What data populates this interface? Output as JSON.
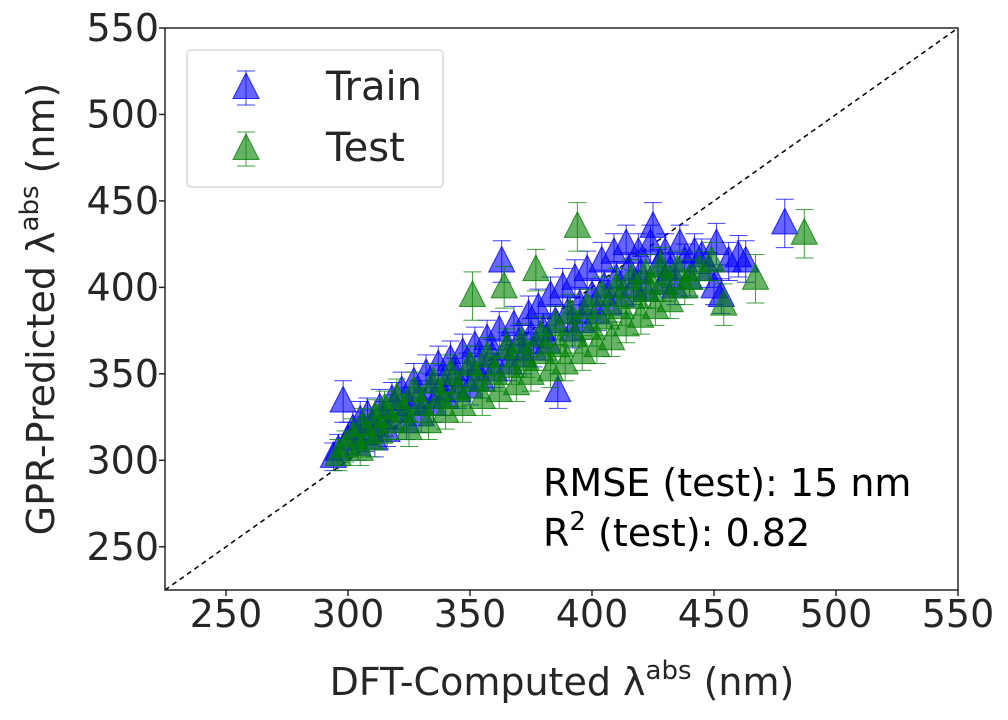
{
  "chart_data": {
    "type": "scatter",
    "title": "",
    "xlabel": {
      "prefix": "DFT-Computed λ",
      "sup": "abs",
      "suffix": " (nm)"
    },
    "ylabel": {
      "prefix": "GPR-Predicted λ",
      "sup": "abs",
      "suffix": " (nm)"
    },
    "xlim": [
      225,
      550
    ],
    "ylim": [
      225,
      550
    ],
    "xticks": [
      250,
      300,
      350,
      400,
      450,
      500,
      550
    ],
    "yticks": [
      250,
      300,
      350,
      400,
      450,
      500,
      550
    ],
    "grid": false,
    "legend_position": "top-left",
    "diagonal": {
      "from": [
        225,
        225
      ],
      "to": [
        550,
        550
      ],
      "style": "dashed"
    },
    "annotations": {
      "rmse": "RMSE (test): 15 nm",
      "r2_prefix": "R",
      "r2_sup": "2",
      "r2_suffix": " (test): 0.82"
    },
    "series": [
      {
        "name": "Train",
        "color": "#0000ff",
        "marker": "triangle-up",
        "points": [
          [
            294,
            302,
            8
          ],
          [
            296,
            306,
            9
          ],
          [
            298,
            334,
            12
          ],
          [
            300,
            312,
            10
          ],
          [
            302,
            318,
            10
          ],
          [
            304,
            309,
            9
          ],
          [
            305,
            323,
            11
          ],
          [
            307,
            315,
            10
          ],
          [
            308,
            326,
            10
          ],
          [
            310,
            320,
            9
          ],
          [
            311,
            312,
            10
          ],
          [
            313,
            330,
            11
          ],
          [
            315,
            324,
            10
          ],
          [
            316,
            317,
            9
          ],
          [
            318,
            335,
            10
          ],
          [
            320,
            328,
            10
          ],
          [
            322,
            340,
            11
          ],
          [
            324,
            322,
            10
          ],
          [
            325,
            332,
            10
          ],
          [
            327,
            345,
            11
          ],
          [
            329,
            336,
            10
          ],
          [
            330,
            326,
            10
          ],
          [
            332,
            350,
            11
          ],
          [
            334,
            340,
            10
          ],
          [
            335,
            332,
            10
          ],
          [
            337,
            355,
            11
          ],
          [
            339,
            345,
            10
          ],
          [
            340,
            336,
            10
          ],
          [
            342,
            358,
            11
          ],
          [
            344,
            349,
            10
          ],
          [
            345,
            340,
            10
          ],
          [
            347,
            362,
            11
          ],
          [
            349,
            352,
            10
          ],
          [
            350,
            342,
            10
          ],
          [
            352,
            366,
            11
          ],
          [
            354,
            356,
            10
          ],
          [
            355,
            346,
            10
          ],
          [
            357,
            370,
            11
          ],
          [
            359,
            360,
            10
          ],
          [
            360,
            352,
            10
          ],
          [
            362,
            375,
            11
          ],
          [
            363,
            415,
            12
          ],
          [
            365,
            364,
            10
          ],
          [
            366,
            356,
            10
          ],
          [
            368,
            378,
            11
          ],
          [
            370,
            368,
            10
          ],
          [
            372,
            360,
            10
          ],
          [
            374,
            384,
            11
          ],
          [
            375,
            372,
            10
          ],
          [
            376,
            364,
            10
          ],
          [
            378,
            388,
            11
          ],
          [
            380,
            375,
            10
          ],
          [
            382,
            368,
            10
          ],
          [
            383,
            395,
            11
          ],
          [
            385,
            380,
            10
          ],
          [
            386,
            340,
            10
          ],
          [
            388,
            400,
            11
          ],
          [
            390,
            385,
            10
          ],
          [
            392,
            375,
            10
          ],
          [
            393,
            405,
            11
          ],
          [
            395,
            390,
            10
          ],
          [
            396,
            380,
            10
          ],
          [
            398,
            410,
            11
          ],
          [
            400,
            395,
            10
          ],
          [
            402,
            385,
            10
          ],
          [
            404,
            415,
            11
          ],
          [
            405,
            400,
            10
          ],
          [
            407,
            390,
            10
          ],
          [
            409,
            420,
            11
          ],
          [
            410,
            405,
            10
          ],
          [
            412,
            395,
            10
          ],
          [
            414,
            425,
            11
          ],
          [
            415,
            410,
            10
          ],
          [
            417,
            400,
            10
          ],
          [
            419,
            420,
            11
          ],
          [
            420,
            408,
            10
          ],
          [
            422,
            398,
            10
          ],
          [
            424,
            425,
            11
          ],
          [
            425,
            435,
            14
          ],
          [
            427,
            412,
            10
          ],
          [
            429,
            402,
            10
          ],
          [
            430,
            420,
            11
          ],
          [
            432,
            410,
            10
          ],
          [
            434,
            400,
            10
          ],
          [
            436,
            425,
            11
          ],
          [
            438,
            415,
            10
          ],
          [
            440,
            405,
            10
          ],
          [
            442,
            420,
            11
          ],
          [
            445,
            418,
            10
          ],
          [
            448,
            410,
            10
          ],
          [
            450,
            400,
            10
          ],
          [
            451,
            425,
            12
          ],
          [
            453,
            395,
            10
          ],
          [
            456,
            415,
            11
          ],
          [
            460,
            418,
            12
          ],
          [
            463,
            415,
            12
          ],
          [
            479,
            437,
            14
          ]
        ]
      },
      {
        "name": "Test",
        "color": "#008000",
        "marker": "triangle-up",
        "points": [
          [
            296,
            303,
            9
          ],
          [
            299,
            308,
            9
          ],
          [
            302,
            314,
            10
          ],
          [
            305,
            306,
            9
          ],
          [
            306,
            320,
            10
          ],
          [
            309,
            312,
            10
          ],
          [
            311,
            325,
            10
          ],
          [
            313,
            316,
            9
          ],
          [
            315,
            330,
            10
          ],
          [
            318,
            322,
            10
          ],
          [
            320,
            336,
            11
          ],
          [
            323,
            328,
            10
          ],
          [
            325,
            318,
            10
          ],
          [
            327,
            340,
            11
          ],
          [
            330,
            332,
            10
          ],
          [
            333,
            322,
            10
          ],
          [
            335,
            345,
            11
          ],
          [
            338,
            336,
            10
          ],
          [
            340,
            328,
            10
          ],
          [
            342,
            350,
            11
          ],
          [
            345,
            341,
            10
          ],
          [
            347,
            332,
            10
          ],
          [
            350,
            355,
            11
          ],
          [
            351,
            395,
            14
          ],
          [
            353,
            346,
            10
          ],
          [
            355,
            336,
            10
          ],
          [
            357,
            360,
            11
          ],
          [
            360,
            350,
            10
          ],
          [
            362,
            340,
            10
          ],
          [
            364,
            400,
            12
          ],
          [
            365,
            365,
            11
          ],
          [
            367,
            354,
            10
          ],
          [
            369,
            344,
            10
          ],
          [
            371,
            368,
            11
          ],
          [
            373,
            358,
            10
          ],
          [
            375,
            350,
            10
          ],
          [
            377,
            410,
            12
          ],
          [
            379,
            372,
            11
          ],
          [
            381,
            362,
            10
          ],
          [
            383,
            352,
            10
          ],
          [
            385,
            378,
            11
          ],
          [
            387,
            366,
            10
          ],
          [
            389,
            356,
            10
          ],
          [
            391,
            385,
            11
          ],
          [
            393,
            372,
            10
          ],
          [
            394,
            435,
            14
          ],
          [
            396,
            362,
            10
          ],
          [
            398,
            388,
            11
          ],
          [
            400,
            376,
            10
          ],
          [
            402,
            366,
            10
          ],
          [
            404,
            395,
            11
          ],
          [
            406,
            382,
            10
          ],
          [
            408,
            370,
            10
          ],
          [
            410,
            400,
            11
          ],
          [
            412,
            388,
            10
          ],
          [
            414,
            378,
            10
          ],
          [
            416,
            405,
            11
          ],
          [
            418,
            394,
            10
          ],
          [
            420,
            383,
            10
          ],
          [
            422,
            408,
            11
          ],
          [
            424,
            398,
            10
          ],
          [
            426,
            388,
            10
          ],
          [
            428,
            412,
            11
          ],
          [
            430,
            402,
            10
          ],
          [
            432,
            392,
            10
          ],
          [
            435,
            410,
            11
          ],
          [
            438,
            400,
            10
          ],
          [
            440,
            405,
            11
          ],
          [
            444,
            410,
            11
          ],
          [
            449,
            415,
            11
          ],
          [
            454,
            390,
            12
          ],
          [
            467,
            405,
            14
          ],
          [
            487,
            431,
            14
          ]
        ]
      }
    ]
  }
}
